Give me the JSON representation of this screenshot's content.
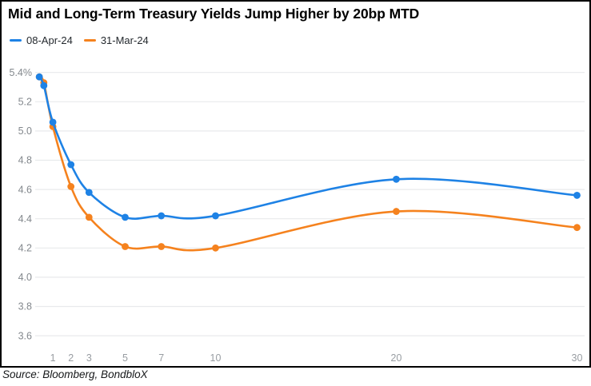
{
  "title": "Mid and Long-Term Treasury Yields Jump Higher by 20bp MTD",
  "source_note": "Source: Bloomberg, BondbloX",
  "legend": [
    {
      "label": "08-Apr-24",
      "color": "#1E82E5"
    },
    {
      "label": "31-Mar-24",
      "color": "#F5821E"
    }
  ],
  "chart_data": {
    "type": "line",
    "title": "Mid and Long-Term Treasury Yields Jump Higher by 20bp MTD",
    "xlabel": "",
    "ylabel": "",
    "x": [
      0.25,
      0.5,
      1,
      2,
      3,
      5,
      7,
      10,
      20,
      30
    ],
    "series": [
      {
        "name": "08-Apr-24",
        "color": "#1E82E5",
        "values": [
          5.37,
          5.31,
          5.06,
          4.77,
          4.58,
          4.41,
          4.42,
          4.42,
          4.67,
          4.56
        ]
      },
      {
        "name": "31-Mar-24",
        "color": "#F5821E",
        "values": [
          5.37,
          5.33,
          5.03,
          4.62,
          4.41,
          4.21,
          4.21,
          4.2,
          4.45,
          4.34
        ]
      }
    ],
    "x_ticks": [
      {
        "value": 1,
        "label": "1"
      },
      {
        "value": 2,
        "label": "2"
      },
      {
        "value": 3,
        "label": "3"
      },
      {
        "value": 5,
        "label": "5"
      },
      {
        "value": 7,
        "label": "7"
      },
      {
        "value": 10,
        "label": "10"
      },
      {
        "value": 20,
        "label": "20"
      },
      {
        "value": 30,
        "label": "30"
      }
    ],
    "y_ticks": [
      {
        "value": 5.4,
        "label": "5.4%"
      },
      {
        "value": 5.2,
        "label": "5.2"
      },
      {
        "value": 5.0,
        "label": "5.0"
      },
      {
        "value": 4.8,
        "label": "4.8"
      },
      {
        "value": 4.6,
        "label": "4.6"
      },
      {
        "value": 4.4,
        "label": "4.4"
      },
      {
        "value": 4.2,
        "label": "4.2"
      },
      {
        "value": 4.0,
        "label": "4.0"
      },
      {
        "value": 3.8,
        "label": "3.8"
      },
      {
        "value": 3.6,
        "label": "3.6"
      }
    ],
    "ylim": [
      3.6,
      5.4
    ],
    "xlim": [
      0,
      30.6
    ],
    "grid": true,
    "smooth": true,
    "legend_position": "top-left"
  }
}
